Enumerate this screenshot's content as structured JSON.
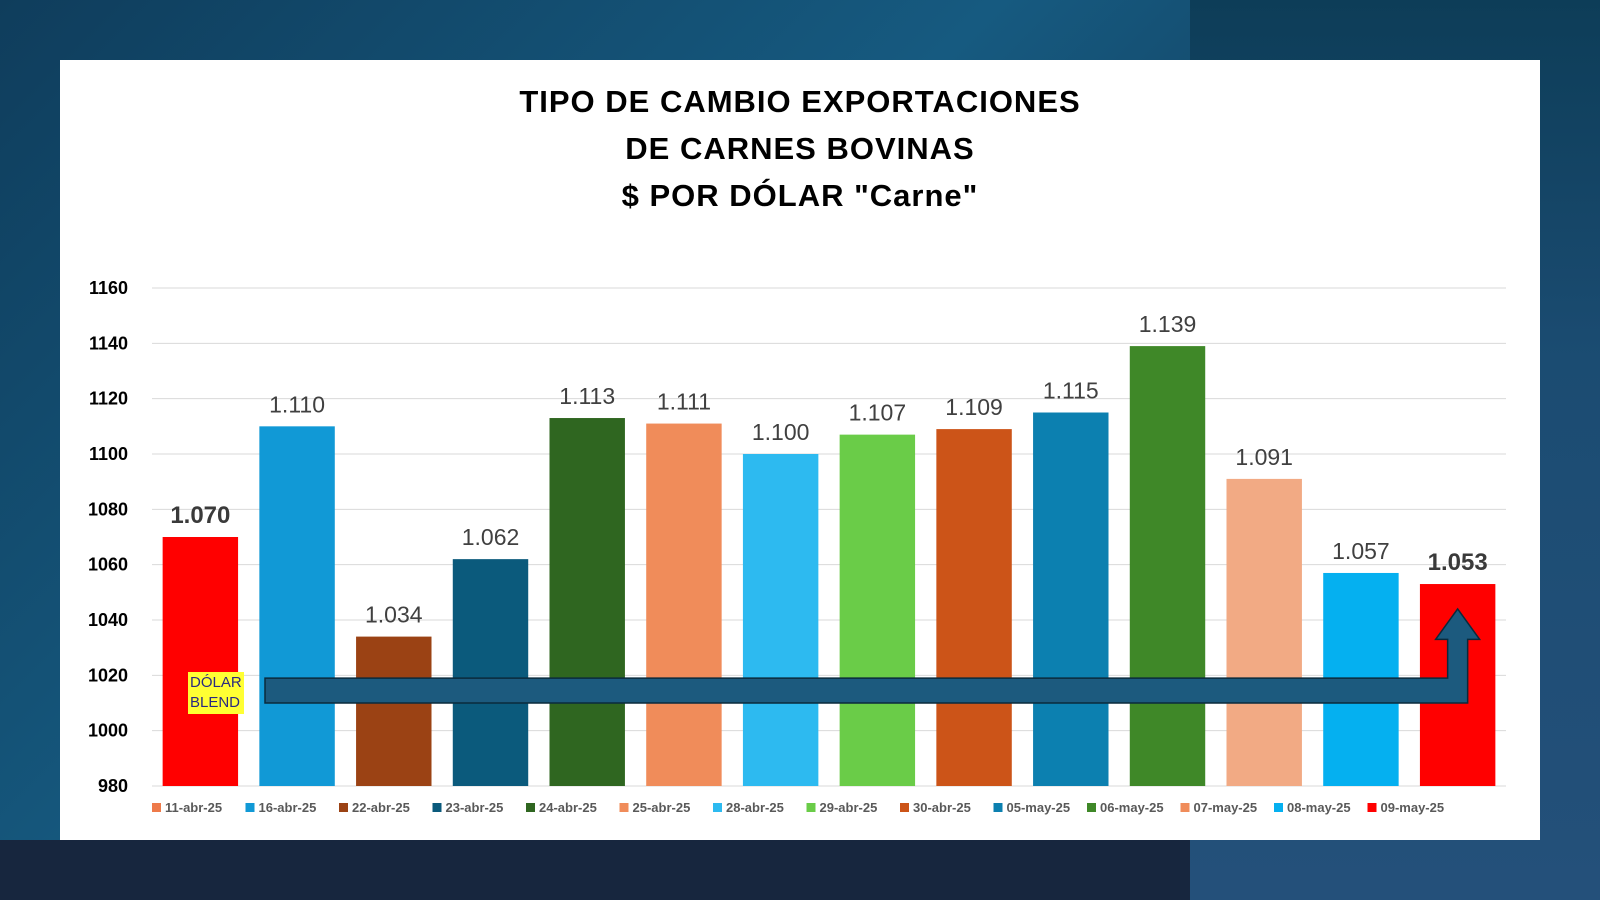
{
  "title_lines": [
    "TIPO DE CAMBIO EXPORTACIONES",
    "DE CARNES BOVINAS",
    "$ POR DÓLAR \"Carne\""
  ],
  "annotation": {
    "line1": "DÓLAR",
    "line2": "BLEND",
    "arrow_color": "#1c5a7e"
  },
  "chart_data": {
    "type": "bar",
    "title": "TIPO DE CAMBIO EXPORTACIONES DE CARNES BOVINAS $ POR DÓLAR \"Carne\"",
    "xlabel": "",
    "ylabel": "",
    "ylim": [
      980,
      1160
    ],
    "yticks": [
      980,
      1000,
      1020,
      1040,
      1060,
      1080,
      1100,
      1120,
      1140,
      1160
    ],
    "grid": true,
    "legend_position": "bottom",
    "categories": [
      "11-abr-25",
      "16-abr-25",
      "22-abr-25",
      "23-abr-25",
      "24-abr-25",
      "25-abr-25",
      "28-abr-25",
      "29-abr-25",
      "30-abr-25",
      "05-may-25",
      "06-may-25",
      "07-may-25",
      "08-may-25",
      "09-may-25"
    ],
    "values": [
      1070,
      1110,
      1034,
      1062,
      1113,
      1111,
      1100,
      1107,
      1109,
      1115,
      1139,
      1091,
      1057,
      1053
    ],
    "value_labels": [
      "1.070",
      "1.110",
      "1.034",
      "1.062",
      "1.113",
      "1.111",
      "1.100",
      "1.107",
      "1.109",
      "1.115",
      "1.139",
      "1.091",
      "1.057",
      "1.053"
    ],
    "bold_labels": [
      true,
      false,
      false,
      false,
      false,
      false,
      false,
      false,
      false,
      false,
      false,
      false,
      false,
      true
    ],
    "colors": [
      "#ff0000",
      "#1199d6",
      "#9b4214",
      "#0b5a7c",
      "#2f6620",
      "#f08c5a",
      "#2dbaf0",
      "#6acc48",
      "#cc5418",
      "#0c80b0",
      "#3f8828",
      "#f2aa84",
      "#05b0f0",
      "#ff0000"
    ],
    "legend_colors": [
      "#ee7a4a",
      "#1199d6",
      "#9b4214",
      "#0b5a7c",
      "#2f6620",
      "#f08c5a",
      "#2dbaf0",
      "#6acc48",
      "#cc5418",
      "#0c80b0",
      "#3f8828",
      "#f08c5a",
      "#05b0f0",
      "#ff0000"
    ]
  }
}
